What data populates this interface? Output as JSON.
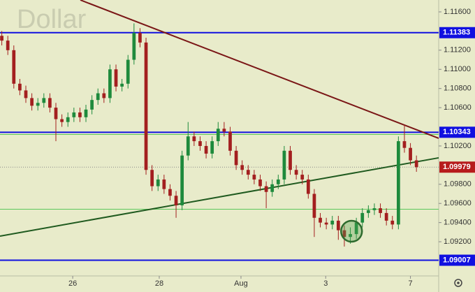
{
  "chart_data": {
    "type": "candlestick",
    "watermark": "Dollar",
    "xlim": [
      -0.3,
      72.7
    ],
    "ylim": [
      1.08843,
      1.11724
    ],
    "xticks": [
      {
        "value": 11.8,
        "label": "26"
      },
      {
        "value": 26.2,
        "label": "28"
      },
      {
        "value": 39.8,
        "label": "Aug"
      },
      {
        "value": 53.9,
        "label": "3"
      },
      {
        "value": 68.0,
        "label": "7"
      }
    ],
    "yticks": [
      {
        "value": 1.116,
        "label": "1.11600"
      },
      {
        "value": 1.112,
        "label": "1.11200"
      },
      {
        "value": 1.11,
        "label": "1.11000"
      },
      {
        "value": 1.108,
        "label": "1.10800"
      },
      {
        "value": 1.106,
        "label": "1.10600"
      },
      {
        "value": 1.102,
        "label": "1.10200"
      },
      {
        "value": 1.098,
        "label": "1.09800"
      },
      {
        "value": 1.096,
        "label": "1.09600"
      },
      {
        "value": 1.094,
        "label": "1.09400"
      },
      {
        "value": 1.092,
        "label": "1.09200"
      }
    ],
    "up_color": "#1e8a3c",
    "down_color": "#a31f1f",
    "open": [
      1.1135,
      1.113,
      1.112,
      1.1085,
      1.1078,
      1.107,
      1.1062,
      1.1065,
      1.107,
      1.106,
      1.1048,
      1.1045,
      1.105,
      1.1055,
      1.105,
      1.1058,
      1.1068,
      1.1075,
      1.107,
      1.11,
      1.1082,
      1.1085,
      1.111,
      1.1138,
      1.1128,
      1.0995,
      1.0978,
      1.0985,
      1.0975,
      1.0968,
      1.0958,
      1.101,
      1.103,
      1.1025,
      1.102,
      1.1012,
      1.1025,
      1.1038,
      1.1035,
      1.1015,
      1.1,
      1.0995,
      1.099,
      1.0985,
      1.0978,
      1.0972,
      1.098,
      1.0985,
      1.1015,
      1.0995,
      1.099,
      1.0985,
      1.097,
      1.0945,
      1.094,
      1.0938,
      1.0942,
      1.0932,
      1.0925,
      1.0928,
      1.094,
      1.095,
      1.0953,
      1.0955,
      1.095,
      1.0942,
      1.0938,
      1.1025,
      1.1018,
      1.1005
    ],
    "high": [
      1.114,
      1.1135,
      1.1125,
      1.109,
      1.1083,
      1.1075,
      1.107,
      1.1075,
      1.1075,
      1.1065,
      1.1053,
      1.1055,
      1.106,
      1.106,
      1.1063,
      1.1073,
      1.108,
      1.108,
      1.1105,
      1.1105,
      1.109,
      1.1115,
      1.1148,
      1.1143,
      1.1133,
      1.1,
      1.099,
      1.099,
      1.098,
      1.0973,
      1.1015,
      1.1045,
      1.1035,
      1.103,
      1.1025,
      1.103,
      1.1045,
      1.1045,
      1.104,
      1.102,
      1.1005,
      1.1,
      1.0995,
      1.099,
      1.0983,
      1.0985,
      1.099,
      1.102,
      1.102,
      1.1,
      1.0995,
      1.099,
      1.0975,
      1.095,
      1.0945,
      1.0947,
      1.0947,
      1.0937,
      1.0935,
      1.0945,
      1.0955,
      1.0958,
      1.096,
      1.096,
      1.0955,
      1.0947,
      1.103,
      1.1042,
      1.1023,
      1.101
    ],
    "low": [
      1.1125,
      1.1115,
      1.108,
      1.1073,
      1.1065,
      1.1057,
      1.1057,
      1.106,
      1.1055,
      1.1025,
      1.104,
      1.104,
      1.1045,
      1.1045,
      1.1045,
      1.1053,
      1.1063,
      1.1065,
      1.1065,
      1.1077,
      1.1077,
      1.108,
      1.1105,
      1.1123,
      1.099,
      1.0973,
      1.0973,
      1.097,
      1.0963,
      1.0945,
      1.0953,
      1.1005,
      1.102,
      1.1015,
      1.1007,
      1.1007,
      1.102,
      1.103,
      1.101,
      1.0995,
      1.099,
      1.0985,
      1.098,
      1.0973,
      1.0955,
      1.0967,
      1.0975,
      1.098,
      1.099,
      1.0985,
      1.098,
      1.0965,
      1.0925,
      1.0935,
      1.0933,
      1.0933,
      1.0922,
      1.0915,
      1.0918,
      1.0923,
      1.0935,
      1.0945,
      1.0948,
      1.0945,
      1.0937,
      1.0933,
      1.0933,
      1.1013,
      1.1,
      1.0993
    ],
    "close": [
      1.113,
      1.112,
      1.1085,
      1.1078,
      1.107,
      1.1062,
      1.1065,
      1.107,
      1.106,
      1.1048,
      1.1045,
      1.105,
      1.1055,
      1.105,
      1.1058,
      1.1068,
      1.1075,
      1.107,
      1.11,
      1.1082,
      1.1085,
      1.111,
      1.1138,
      1.1128,
      1.0995,
      1.0978,
      1.0985,
      1.0975,
      1.0968,
      1.0958,
      1.101,
      1.103,
      1.1025,
      1.102,
      1.1012,
      1.1025,
      1.1038,
      1.1035,
      1.1015,
      1.1,
      1.0995,
      1.099,
      1.0985,
      1.0978,
      1.0972,
      1.098,
      1.0985,
      1.1015,
      1.0995,
      1.099,
      1.0985,
      1.097,
      1.0945,
      1.094,
      1.0938,
      1.0942,
      1.0932,
      1.0925,
      1.0928,
      1.094,
      1.095,
      1.0953,
      1.0955,
      1.095,
      1.0942,
      1.0938,
      1.1025,
      1.1018,
      1.1005,
      1.09979
    ],
    "levels": [
      {
        "value": 1.11383,
        "color": "#1010e0",
        "labeled": true
      },
      {
        "value": 1.10343,
        "color": "#1010e0",
        "labeled": true
      },
      {
        "value": 1.09007,
        "color": "#1010e0",
        "labeled": true
      },
      {
        "value": 1.1032,
        "color": "#5cc85c",
        "labeled": false
      },
      {
        "value": 1.0954,
        "color": "#5cc85c",
        "labeled": false
      }
    ],
    "last_price": {
      "value": 1.09979,
      "color": "#b71c1c"
    },
    "trendlines": [
      {
        "points": [
          [
            13.07,
            1.11724
          ],
          [
            72.7,
            1.1028
          ]
        ],
        "color": "#7a1616"
      },
      {
        "points": [
          [
            -0.3,
            1.09259
          ],
          [
            72.7,
            1.10076
          ]
        ],
        "color": "#1f5a1f"
      }
    ],
    "circle": {
      "x": 58.2,
      "y": 1.0931,
      "color": "#2e6b2e"
    }
  }
}
